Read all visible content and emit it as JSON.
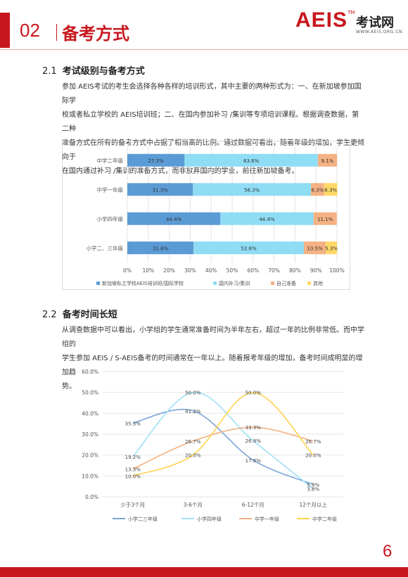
{
  "header": {
    "chapter_number": "02",
    "chapter_title": "备考方式",
    "logo_text": "AEIS",
    "logo_tm": "TM",
    "logo_cn": "考试网",
    "logo_url": "WWW.AEIS.ORG.CN"
  },
  "section1": {
    "number": "2.1",
    "title": "考试级别与备考方式",
    "paragraph_lines": [
      "参加 AEIS考试的考生会选择各种各样的培训形式，其中主要的两种形式为：一、在新加坡参加国际学",
      "校或者私立学校的 AEIS培训班；二、在国内参加补习 /集训等专项培训课程。根据调查数据，第二种",
      "准备方式在所有的备考方式中占据了相当高的比例。通过数据可看出，随着年级的增加，学生更倾向于",
      "在国内通过补习 /集训的准备方式，而非放弃国内的学业，前往新加坡备考。"
    ]
  },
  "section2": {
    "number": "2.2",
    "title": "备考时间长短",
    "paragraph_lines": [
      "从调查数据中可以看出，小学组的学生通常准备时间为半年左右，超过一年的比例非常低。而中学组的",
      "学生参加 AEIS / S-AEIS备考的时间通常在一年以上。随着报考年级的增加，备考时间成明显的增加趋",
      "势。"
    ]
  },
  "page_number": "6",
  "colors": {
    "brand": "#c8161d"
  },
  "chart_data": [
    {
      "type": "bar",
      "orientation": "horizontal-stacked-100",
      "categories": [
        "中学二年级",
        "中学一年级",
        "小学四年级",
        "小学二、三年级"
      ],
      "series": [
        {
          "name": "新加坡私立学校AEIS培训班/国际学校",
          "color": "#5b9bd5",
          "values": [
            27.3,
            31.3,
            44.4,
            31.6
          ],
          "labels": [
            "27.3%",
            "31.3%",
            "44.4%",
            "31.6%"
          ]
        },
        {
          "name": "国内补习/集训",
          "color": "#8fdcf5",
          "values": [
            63.6,
            56.3,
            44.4,
            52.6
          ],
          "labels": [
            "63.6%",
            "56.3%",
            "44.4%",
            "52.6%"
          ]
        },
        {
          "name": "自己准备",
          "color": "#f4b183",
          "values": [
            9.1,
            6.3,
            11.1,
            10.5
          ],
          "labels": [
            "9.1%",
            "6.3%",
            "11.1%",
            "10.5%"
          ]
        },
        {
          "name": "其他",
          "color": "#ffd966",
          "values": [
            0,
            6.3,
            0,
            5.3
          ],
          "labels": [
            "",
            "6.3%",
            "",
            "5.3%"
          ]
        }
      ],
      "xticks": [
        "0%",
        "10%",
        "20%",
        "30%",
        "40%",
        "50%",
        "60%",
        "70%",
        "80%",
        "90%",
        "100%"
      ],
      "xlim": [
        0,
        100
      ],
      "grid": true,
      "legend": "bottom"
    },
    {
      "type": "line",
      "smooth": true,
      "categories": [
        "少于3个月",
        "3-6个月",
        "6-12个月",
        "12个月以上"
      ],
      "series": [
        {
          "name": "小学二三年级",
          "color": "#7aa6d8",
          "values": [
            35.3,
            41.2,
            17.6,
            5.9
          ],
          "labels": [
            "35.3%",
            "41.2%",
            "17.6%",
            "5.9%"
          ]
        },
        {
          "name": "小学四年级",
          "color": "#9fe0f4",
          "values": [
            19.2,
            50.0,
            26.9,
            3.8
          ],
          "labels": [
            "19.2%",
            "50.0%",
            "26.9%",
            "3.8%"
          ]
        },
        {
          "name": "中学一年级",
          "color": "#f4b183",
          "values": [
            13.3,
            26.7,
            33.3,
            26.7
          ],
          "labels": [
            "13.3%",
            "26.7%",
            "33.3%",
            "26.7%"
          ]
        },
        {
          "name": "中学二年级",
          "color": "#ffd24d",
          "values": [
            10.0,
            20.0,
            50.0,
            20.0
          ],
          "labels": [
            "10.0%",
            "20.0%",
            "50.0%",
            "20.0%"
          ]
        }
      ],
      "yticks": [
        "0.0%",
        "10.0%",
        "20.0%",
        "30.0%",
        "40.0%",
        "50.0%",
        "60.0%"
      ],
      "ylim": [
        0,
        60
      ],
      "grid": true,
      "legend": "bottom"
    }
  ]
}
